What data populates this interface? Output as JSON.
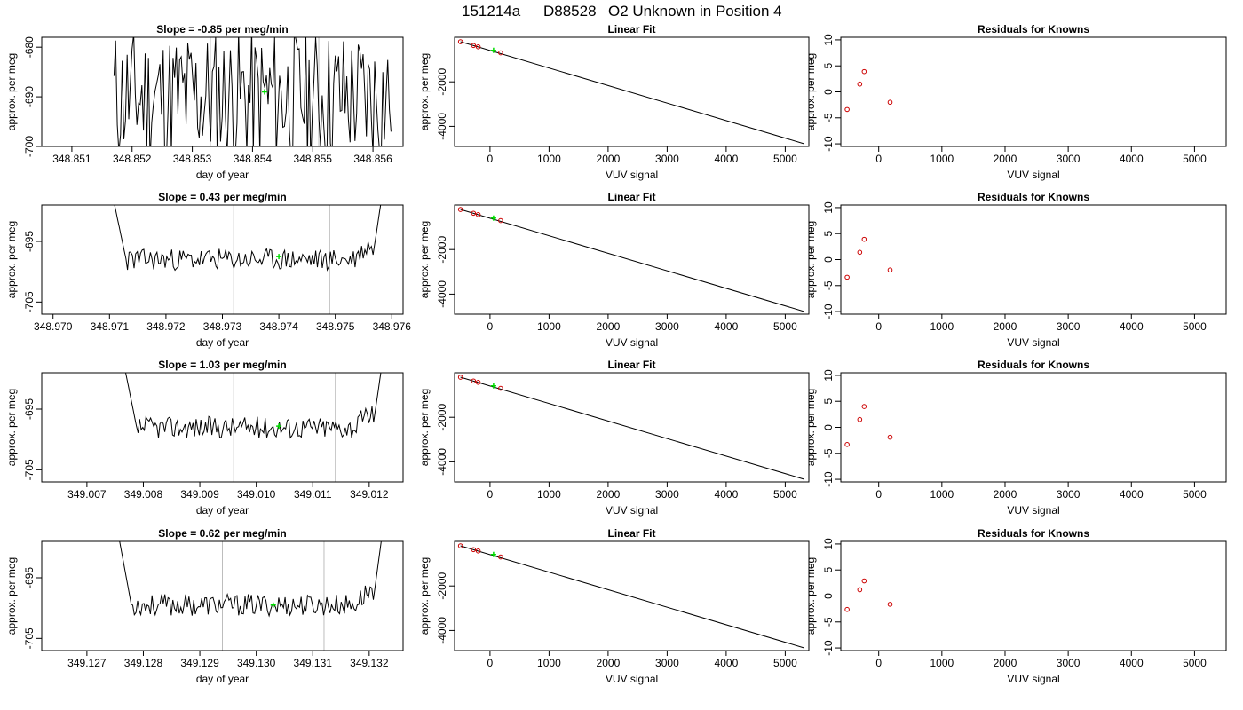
{
  "title": {
    "date": "151214a",
    "tank": "D88528",
    "rest": "O2 Unknown in Position  4"
  },
  "chart_data": [
    {
      "panel": "timeseries",
      "row": 1,
      "type": "line",
      "title": "Slope =  -0.85  per meg/min",
      "xlabel": "day of year",
      "ylabel": "approx. per meg",
      "xlim": [
        348.8505,
        348.8565
      ],
      "ylim": [
        -700,
        -678
      ],
      "xticks": [
        348.851,
        348.852,
        348.853,
        348.854,
        348.855,
        348.856
      ],
      "xtick_labels": [
        "348.851",
        "348.852",
        "348.853",
        "348.854",
        "348.855",
        "348.856"
      ],
      "yticks": [
        -700,
        -690,
        -680
      ],
      "ytick_labels": [
        "-700",
        "-690",
        "-680"
      ],
      "vlines": [
        348.8533,
        348.8551
      ],
      "marker": {
        "x": 348.8542,
        "y": -689.0,
        "color": "#00dd00"
      },
      "line_color": "#000000",
      "series": [
        {
          "x_start": 348.8517,
          "x_end": 348.8563,
          "seed": 11,
          "base": -690,
          "amp": 14,
          "spikes": true
        }
      ]
    },
    {
      "panel": "fit",
      "row": 1,
      "type": "scatter",
      "title": "Linear Fit",
      "xlabel": "VUV signal",
      "ylabel": "approx. per meg",
      "xlim": [
        -600,
        5400
      ],
      "ylim": [
        -4900,
        0
      ],
      "xticks": [
        0,
        1000,
        2000,
        3000,
        4000,
        5000
      ],
      "xtick_labels": [
        "0",
        "1000",
        "2000",
        "3000",
        "4000",
        "5000"
      ],
      "yticks": [
        -4000,
        -2000
      ],
      "ytick_labels": [
        "-4000",
        "-2000"
      ],
      "fit_line": {
        "x": [
          -500,
          5320
        ],
        "y": [
          -200,
          -4780
        ]
      },
      "knowns": {
        "x": [
          -500,
          -280,
          -200,
          180
        ],
        "y": [
          -200,
          -370,
          -430,
          -700
        ]
      },
      "unknown": {
        "x": 60,
        "y": -590
      },
      "known_color": "#cc0000",
      "unknown_color": "#00dd00"
    },
    {
      "panel": "residuals",
      "row": 1,
      "type": "scatter",
      "title": "Residuals for Knowns",
      "xlabel": "VUV signal",
      "ylabel": "approx. per meg",
      "xlim": [
        -600,
        5500
      ],
      "ylim": [
        -10.5,
        10.5
      ],
      "xticks": [
        0,
        1000,
        2000,
        3000,
        4000,
        5000
      ],
      "xtick_labels": [
        "0",
        "1000",
        "2000",
        "3000",
        "4000",
        "5000"
      ],
      "yticks": [
        -10,
        -5,
        0,
        5,
        10
      ],
      "ytick_labels": [
        "-10",
        "-5",
        "0",
        "5",
        "10"
      ],
      "x": [
        -500,
        -300,
        -230,
        180
      ],
      "y": [
        -3.4,
        1.5,
        3.9,
        -2.0
      ],
      "color": "#cc0000"
    },
    {
      "panel": "timeseries",
      "row": 2,
      "type": "line",
      "title": "Slope =  0.43  per meg/min",
      "xlabel": "day of year",
      "ylabel": "approx. per meg",
      "xlim": [
        348.9698,
        348.9762
      ],
      "ylim": [
        -707,
        -689
      ],
      "xticks": [
        348.97,
        348.971,
        348.972,
        348.973,
        348.974,
        348.975,
        348.976
      ],
      "xtick_labels": [
        "348.970",
        "348.971",
        "348.972",
        "348.973",
        "348.974",
        "348.975",
        "348.976"
      ],
      "yticks": [
        -705,
        -695
      ],
      "ytick_labels": [
        "-705",
        "-695"
      ],
      "vlines": [
        348.9732,
        348.9749
      ],
      "marker": {
        "x": 348.974,
        "y": -697.5,
        "color": "#00dd00"
      },
      "line_color": "#000000",
      "series": [
        {
          "x_start": 348.971,
          "x_end": 348.9759,
          "seed": 23,
          "base": -698,
          "amp": 1.8,
          "spikes": false
        }
      ]
    },
    {
      "panel": "fit",
      "row": 2,
      "type": "scatter",
      "title": "Linear Fit",
      "xlabel": "VUV signal",
      "ylabel": "approx. per meg",
      "xlim": [
        -600,
        5400
      ],
      "ylim": [
        -4900,
        0
      ],
      "xticks": [
        0,
        1000,
        2000,
        3000,
        4000,
        5000
      ],
      "xtick_labels": [
        "0",
        "1000",
        "2000",
        "3000",
        "4000",
        "5000"
      ],
      "yticks": [
        -4000,
        -2000
      ],
      "ytick_labels": [
        "-4000",
        "-2000"
      ],
      "fit_line": {
        "x": [
          -500,
          5320
        ],
        "y": [
          -200,
          -4780
        ]
      },
      "knowns": {
        "x": [
          -500,
          -280,
          -200,
          180
        ],
        "y": [
          -200,
          -370,
          -430,
          -700
        ]
      },
      "unknown": {
        "x": 60,
        "y": -590
      },
      "known_color": "#cc0000",
      "unknown_color": "#00dd00"
    },
    {
      "panel": "residuals",
      "row": 2,
      "type": "scatter",
      "title": "Residuals for Knowns",
      "xlabel": "VUV signal",
      "ylabel": "approx. per meg",
      "xlim": [
        -600,
        5500
      ],
      "ylim": [
        -10.5,
        10.5
      ],
      "xticks": [
        0,
        1000,
        2000,
        3000,
        4000,
        5000
      ],
      "xtick_labels": [
        "0",
        "1000",
        "2000",
        "3000",
        "4000",
        "5000"
      ],
      "yticks": [
        -10,
        -5,
        0,
        5,
        10
      ],
      "ytick_labels": [
        "-10",
        "-5",
        "0",
        "5",
        "10"
      ],
      "x": [
        -500,
        -300,
        -230,
        180
      ],
      "y": [
        -3.4,
        1.4,
        3.9,
        -2.0
      ],
      "color": "#cc0000"
    },
    {
      "panel": "timeseries",
      "row": 3,
      "type": "line",
      "title": "Slope =  1.03  per meg/min",
      "xlabel": "day of year",
      "ylabel": "approx. per meg",
      "xlim": [
        349.0062,
        349.0126
      ],
      "ylim": [
        -707,
        -689
      ],
      "xticks": [
        349.007,
        349.008,
        349.009,
        349.01,
        349.011,
        349.012
      ],
      "xtick_labels": [
        "349.007",
        "349.008",
        "349.009",
        "349.010",
        "349.011",
        "349.012"
      ],
      "yticks": [
        -705,
        -695
      ],
      "ytick_labels": [
        "-705",
        "-695"
      ],
      "vlines": [
        349.0096,
        349.0114
      ],
      "marker": {
        "x": 349.0104,
        "y": -697.8,
        "color": "#00dd00"
      },
      "line_color": "#000000",
      "series": [
        {
          "x_start": 349.0076,
          "x_end": 349.0123,
          "seed": 37,
          "base": -698,
          "amp": 1.8,
          "spikes": false
        }
      ]
    },
    {
      "panel": "fit",
      "row": 3,
      "type": "scatter",
      "title": "Linear Fit",
      "xlabel": "VUV signal",
      "ylabel": "approx. per meg",
      "xlim": [
        -600,
        5400
      ],
      "ylim": [
        -4900,
        0
      ],
      "xticks": [
        0,
        1000,
        2000,
        3000,
        4000,
        5000
      ],
      "xtick_labels": [
        "0",
        "1000",
        "2000",
        "3000",
        "4000",
        "5000"
      ],
      "yticks": [
        -4000,
        -2000
      ],
      "ytick_labels": [
        "-4000",
        "-2000"
      ],
      "fit_line": {
        "x": [
          -500,
          5320
        ],
        "y": [
          -200,
          -4780
        ]
      },
      "knowns": {
        "x": [
          -500,
          -280,
          -200,
          180
        ],
        "y": [
          -200,
          -370,
          -430,
          -700
        ]
      },
      "unknown": {
        "x": 60,
        "y": -590
      },
      "known_color": "#cc0000",
      "unknown_color": "#00dd00"
    },
    {
      "panel": "residuals",
      "row": 3,
      "type": "scatter",
      "title": "Residuals for Knowns",
      "xlabel": "VUV signal",
      "ylabel": "approx. per meg",
      "xlim": [
        -600,
        5500
      ],
      "ylim": [
        -10.5,
        10.5
      ],
      "xticks": [
        0,
        1000,
        2000,
        3000,
        4000,
        5000
      ],
      "xtick_labels": [
        "0",
        "1000",
        "2000",
        "3000",
        "4000",
        "5000"
      ],
      "yticks": [
        -10,
        -5,
        0,
        5,
        10
      ],
      "ytick_labels": [
        "-10",
        "-5",
        "0",
        "5",
        "10"
      ],
      "x": [
        -500,
        -300,
        -230,
        180
      ],
      "y": [
        -3.3,
        1.5,
        4.0,
        -1.9
      ],
      "color": "#cc0000"
    },
    {
      "panel": "timeseries",
      "row": 4,
      "type": "line",
      "title": "Slope =  0.62  per meg/min",
      "xlabel": "day of year",
      "ylabel": "approx. per meg",
      "xlim": [
        349.1262,
        349.1326
      ],
      "ylim": [
        -707,
        -689
      ],
      "xticks": [
        349.127,
        349.128,
        349.129,
        349.13,
        349.131,
        349.132
      ],
      "xtick_labels": [
        "349.127",
        "349.128",
        "349.129",
        "349.130",
        "349.131",
        "349.132"
      ],
      "yticks": [
        -705,
        -695
      ],
      "ytick_labels": [
        "-705",
        "-695"
      ],
      "vlines": [
        349.1294,
        349.1312
      ],
      "marker": {
        "x": 349.1303,
        "y": -699.5,
        "color": "#00dd00"
      },
      "line_color": "#000000",
      "series": [
        {
          "x_start": 349.1275,
          "x_end": 349.1323,
          "seed": 53,
          "base": -699.5,
          "amp": 1.8,
          "spikes": false
        }
      ]
    },
    {
      "panel": "fit",
      "row": 4,
      "type": "scatter",
      "title": "Linear Fit",
      "xlabel": "VUV signal",
      "ylabel": "approx. per meg",
      "xlim": [
        -600,
        5400
      ],
      "ylim": [
        -4900,
        0
      ],
      "xticks": [
        0,
        1000,
        2000,
        3000,
        4000,
        5000
      ],
      "xtick_labels": [
        "0",
        "1000",
        "2000",
        "3000",
        "4000",
        "5000"
      ],
      "yticks": [
        -4000,
        -2000
      ],
      "ytick_labels": [
        "-4000",
        "-2000"
      ],
      "fit_line": {
        "x": [
          -500,
          5320
        ],
        "y": [
          -200,
          -4780
        ]
      },
      "knowns": {
        "x": [
          -500,
          -280,
          -200,
          180
        ],
        "y": [
          -200,
          -370,
          -430,
          -700
        ]
      },
      "unknown": {
        "x": 60,
        "y": -590
      },
      "known_color": "#cc0000",
      "unknown_color": "#00dd00"
    },
    {
      "panel": "residuals",
      "row": 4,
      "type": "scatter",
      "title": "Residuals for Knowns",
      "xlabel": "VUV signal",
      "ylabel": "approx. per meg",
      "xlim": [
        -600,
        5500
      ],
      "ylim": [
        -10.5,
        10.5
      ],
      "xticks": [
        0,
        1000,
        2000,
        3000,
        4000,
        5000
      ],
      "xtick_labels": [
        "0",
        "1000",
        "2000",
        "3000",
        "4000",
        "5000"
      ],
      "yticks": [
        -10,
        -5,
        0,
        5,
        10
      ],
      "ytick_labels": [
        "-10",
        "-5",
        "0",
        "5",
        "10"
      ],
      "x": [
        -500,
        -300,
        -230,
        180
      ],
      "y": [
        -2.6,
        1.2,
        2.9,
        -1.6
      ],
      "color": "#cc0000"
    }
  ]
}
